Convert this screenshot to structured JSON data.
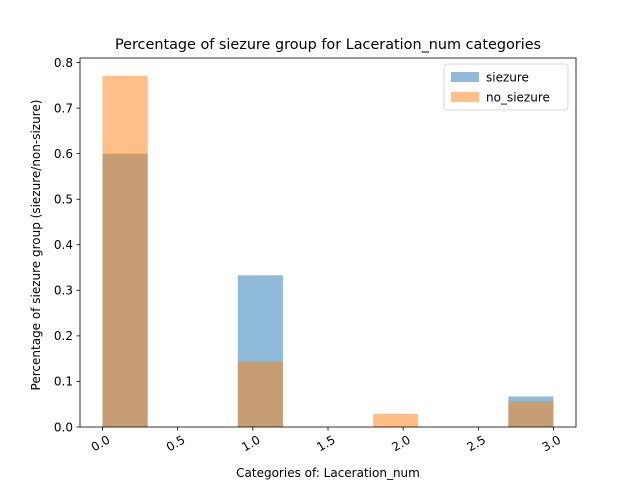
{
  "chart_data": {
    "type": "bar",
    "title": "Percentage of siezure group for Laceration_num categories",
    "xlabel": "Categories of: Laceration_num",
    "ylabel": "Percentage of siezure group (siezure/non-sizure)",
    "xlim": [
      -0.15,
      3.15
    ],
    "ylim": [
      0,
      0.81
    ],
    "x_ticks": [
      0.0,
      0.5,
      1.0,
      1.5,
      2.0,
      2.5,
      3.0
    ],
    "x_tick_labels": [
      "0.0",
      "0.5",
      "1.0",
      "1.5",
      "2.0",
      "2.5",
      "3.0"
    ],
    "y_ticks": [
      0.0,
      0.1,
      0.2,
      0.3,
      0.4,
      0.5,
      0.6,
      0.7,
      0.8
    ],
    "y_tick_labels": [
      "0.0",
      "0.1",
      "0.2",
      "0.3",
      "0.4",
      "0.5",
      "0.6",
      "0.7",
      "0.8"
    ],
    "bin_edges": [
      0.0,
      0.3,
      0.6,
      0.9,
      1.2,
      1.5,
      1.8,
      2.1,
      2.4,
      2.7,
      3.0
    ],
    "grid": false,
    "legend_position": "top-right",
    "series": [
      {
        "name": "siezure",
        "color": "#1f77b4",
        "opacity": 0.5,
        "values": [
          0.6,
          0,
          0,
          0.333,
          0,
          0,
          0,
          0,
          0,
          0.067
        ]
      },
      {
        "name": "no_siezure",
        "color": "#ff7f0e",
        "opacity": 0.5,
        "values": [
          0.771,
          0,
          0,
          0.143,
          0,
          0,
          0.029,
          0,
          0,
          0.057
        ]
      }
    ]
  }
}
